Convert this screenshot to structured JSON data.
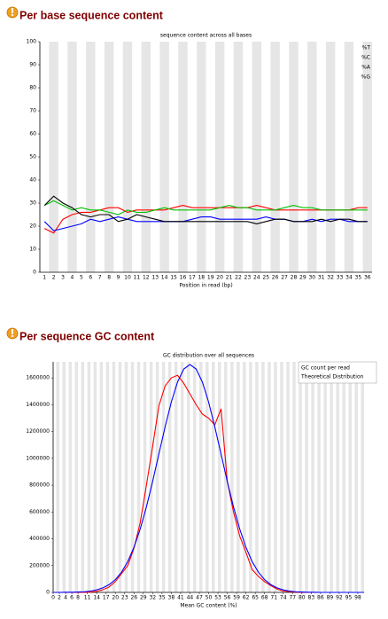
{
  "chart_data": [
    {
      "type": "line",
      "heading": "Per base sequence content",
      "title": "sequence content across all bases",
      "x_label": "Position in read (bp)",
      "categories": [
        "1",
        "2",
        "3",
        "4",
        "5",
        "6",
        "7",
        "8",
        "9",
        "10",
        "11",
        "12",
        "13",
        "14",
        "15",
        "16",
        "17",
        "18",
        "19",
        "20",
        "21",
        "22",
        "23",
        "24",
        "25",
        "26",
        "27",
        "28",
        "29",
        "30",
        "31",
        "32",
        "33",
        "34",
        "35",
        "36"
      ],
      "series": [
        {
          "name": "%T",
          "color": "#ff0000",
          "values": [
            19,
            17,
            23,
            25,
            26,
            26,
            27,
            28,
            28,
            26,
            27,
            27,
            27,
            27,
            28,
            29,
            28,
            28,
            28,
            28,
            28,
            28,
            28,
            29,
            28,
            27,
            27,
            27,
            27,
            27,
            27,
            27,
            27,
            27,
            28,
            28
          ]
        },
        {
          "name": "%C",
          "color": "#0000ff",
          "values": [
            22,
            18,
            19,
            20,
            21,
            23,
            22,
            23,
            24,
            23,
            22,
            22,
            22,
            22,
            22,
            22,
            23,
            24,
            24,
            23,
            23,
            23,
            23,
            23,
            24,
            23,
            23,
            22,
            22,
            23,
            22,
            23,
            23,
            22,
            22,
            22
          ]
        },
        {
          "name": "%A",
          "color": "#00c000",
          "values": [
            29,
            31,
            29,
            27,
            28,
            27,
            27,
            26,
            25,
            27,
            26,
            26,
            27,
            28,
            27,
            27,
            27,
            27,
            27,
            28,
            29,
            28,
            28,
            27,
            27,
            27,
            28,
            29,
            28,
            28,
            27,
            27,
            27,
            27,
            27,
            27
          ]
        },
        {
          "name": "%G",
          "color": "#000000",
          "values": [
            29,
            33,
            30,
            28,
            25,
            24,
            25,
            25,
            22,
            23,
            25,
            24,
            23,
            22,
            22,
            22,
            22,
            22,
            22,
            22,
            22,
            22,
            22,
            21,
            22,
            23,
            23,
            22,
            22,
            22,
            23,
            22,
            23,
            23,
            22,
            22
          ]
        }
      ],
      "ylim": [
        0,
        100
      ],
      "yticks": [
        0,
        10,
        20,
        30,
        40,
        50,
        60,
        70,
        80,
        90,
        100
      ],
      "legend": "upper right"
    },
    {
      "type": "line",
      "heading": "Per sequence GC content",
      "title": "GC distribution over all sequences",
      "x_label": "Mean GC content (%)",
      "x": [
        0,
        2,
        4,
        6,
        8,
        10,
        12,
        14,
        16,
        18,
        20,
        22,
        24,
        26,
        28,
        30,
        32,
        34,
        36,
        38,
        40,
        42,
        44,
        46,
        48,
        50,
        52,
        54,
        56,
        58,
        60,
        62,
        64,
        66,
        68,
        70,
        72,
        74,
        76,
        78,
        80,
        82,
        84,
        86,
        88,
        90,
        92,
        94,
        96,
        98,
        100
      ],
      "series": [
        {
          "name": "GC count per read",
          "color": "#ff0000",
          "values": [
            0,
            0,
            0,
            0,
            0,
            0,
            2000,
            8000,
            20000,
            40000,
            80000,
            140000,
            200000,
            330000,
            520000,
            800000,
            1090000,
            1390000,
            1540000,
            1600000,
            1620000,
            1560000,
            1480000,
            1400000,
            1330000,
            1300000,
            1250000,
            1370000,
            830000,
            600000,
            420000,
            300000,
            170000,
            120000,
            80000,
            50000,
            25000,
            10000,
            5000,
            2000,
            0,
            0,
            0,
            0,
            0,
            0,
            0,
            0,
            0,
            0,
            0
          ]
        },
        {
          "name": "Theoretical Distribution",
          "color": "#0000ff",
          "values": [
            0,
            0,
            1000,
            1000,
            3000,
            5000,
            10000,
            19000,
            34000,
            58000,
            95000,
            151000,
            230000,
            337000,
            473000,
            638000,
            828000,
            1032000,
            1234000,
            1420000,
            1569000,
            1666000,
            1700000,
            1666000,
            1569000,
            1420000,
            1234000,
            1032000,
            828000,
            638000,
            473000,
            337000,
            230000,
            151000,
            95000,
            58000,
            34000,
            19000,
            10000,
            5000,
            3000,
            1000,
            1000,
            0,
            0,
            0,
            0,
            0,
            0,
            0,
            0
          ]
        }
      ],
      "xlim": [
        0,
        100
      ],
      "xticks": [
        0,
        2,
        4,
        6,
        8,
        11,
        14,
        17,
        20,
        23,
        26,
        29,
        32,
        35,
        38,
        41,
        44,
        47,
        50,
        53,
        56,
        59,
        62,
        65,
        68,
        71,
        74,
        77,
        80,
        83,
        86,
        89,
        92,
        95,
        98
      ],
      "ylim": [
        0,
        1720000
      ],
      "yticks": [
        0,
        200000,
        400000,
        600000,
        800000,
        1000000,
        1200000,
        1400000,
        1600000
      ],
      "legend": "upper right"
    }
  ]
}
